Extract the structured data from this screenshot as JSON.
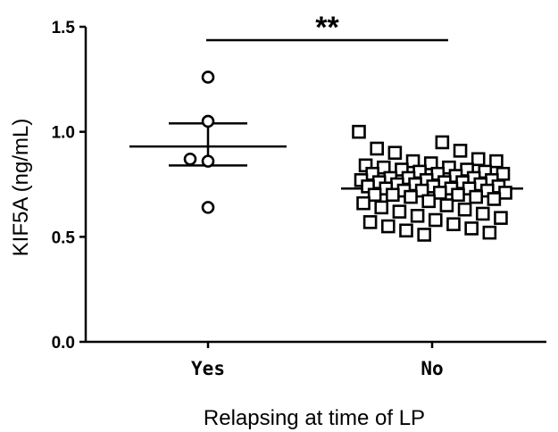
{
  "chart_data": {
    "type": "scatter",
    "xlabel": "Relapsing at time of LP",
    "ylabel": "KIF5A (ng/mL)",
    "ylim": [
      0.0,
      1.5
    ],
    "yticks": [
      "0.0",
      "0.5",
      "1.0",
      "1.5"
    ],
    "ytick_values": [
      0.0,
      0.5,
      1.0,
      1.5
    ],
    "categories": [
      "Yes",
      "No"
    ],
    "grid": false,
    "series": [
      {
        "category": "Yes",
        "marker": "circle",
        "values": [
          1.26,
          1.05,
          0.87,
          0.86,
          0.64
        ],
        "mean": 0.93,
        "error_upper": 1.04,
        "error_lower": 0.84
      },
      {
        "category": "No",
        "marker": "square",
        "values": [
          1.0,
          0.95,
          0.92,
          0.91,
          0.9,
          0.87,
          0.86,
          0.86,
          0.85,
          0.84,
          0.83,
          0.83,
          0.82,
          0.82,
          0.81,
          0.81,
          0.8,
          0.8,
          0.8,
          0.79,
          0.78,
          0.78,
          0.78,
          0.77,
          0.77,
          0.77,
          0.76,
          0.76,
          0.76,
          0.75,
          0.75,
          0.75,
          0.74,
          0.74,
          0.74,
          0.73,
          0.73,
          0.73,
          0.72,
          0.72,
          0.72,
          0.71,
          0.71,
          0.7,
          0.7,
          0.7,
          0.69,
          0.69,
          0.68,
          0.67,
          0.66,
          0.65,
          0.64,
          0.63,
          0.62,
          0.61,
          0.6,
          0.59,
          0.58,
          0.57,
          0.56,
          0.55,
          0.54,
          0.53,
          0.52,
          0.51
        ],
        "mean": 0.73,
        "error_upper": 0.745,
        "error_lower": 0.715
      }
    ],
    "annotation": {
      "text": "**",
      "from": "Yes",
      "to": "No",
      "y": 1.45
    }
  }
}
